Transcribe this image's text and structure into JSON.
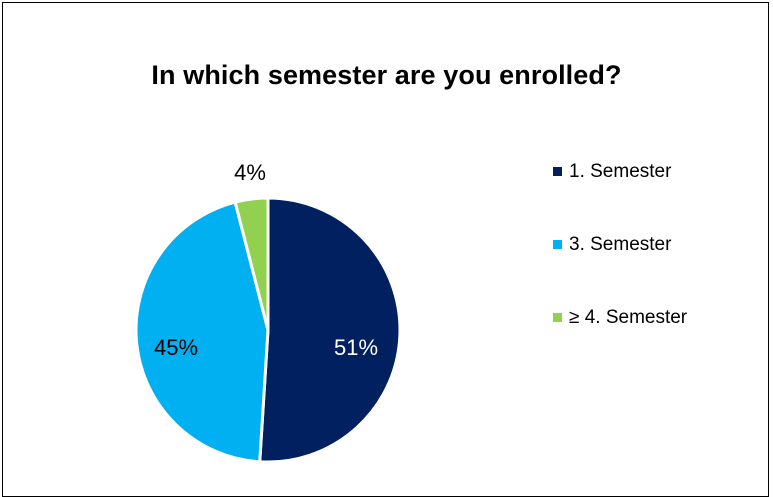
{
  "chart_data": {
    "type": "pie",
    "title": "In which semester are you enrolled?",
    "categories": [
      "1. Semester",
      "3. Semester",
      "≥ 4. Semester"
    ],
    "values": [
      51,
      45,
      4
    ],
    "labels": [
      "51%",
      "45%",
      "4%"
    ],
    "colors": [
      "#002060",
      "#00B0F0",
      "#92D050"
    ],
    "label_colors": [
      "#ffffff",
      "#000000",
      "#000000"
    ],
    "legend_position": "right"
  }
}
